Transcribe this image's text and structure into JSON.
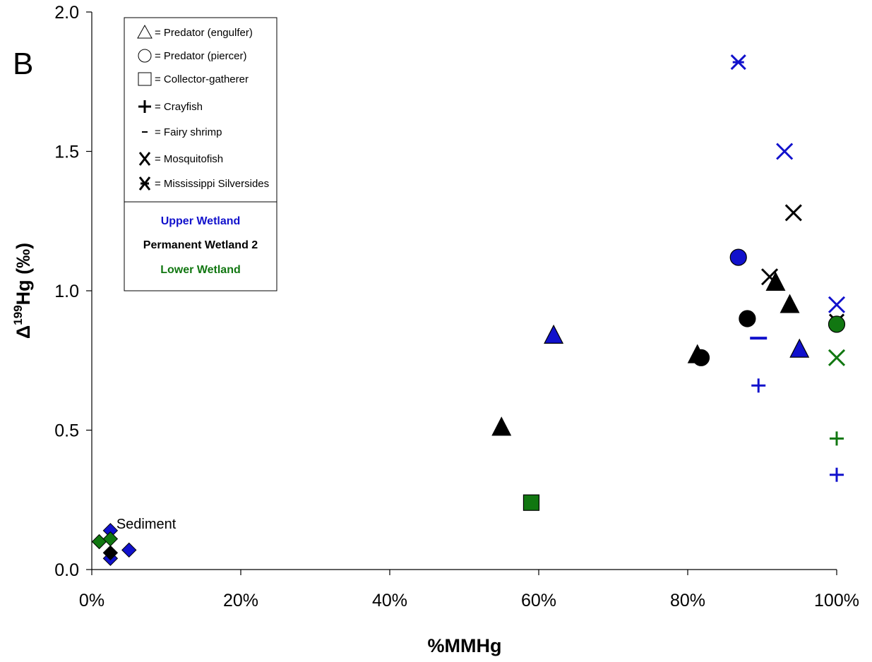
{
  "chart_data": {
    "type": "scatter",
    "panel_label": "B",
    "xlabel": "%MMHg",
    "ylabel_main": "Δ",
    "ylabel_sup": "199",
    "ylabel_rest": "Hg (‰)",
    "xlim": [
      0,
      100
    ],
    "ylim": [
      0,
      2.0
    ],
    "x_ticks": [
      0,
      20,
      40,
      60,
      80,
      100
    ],
    "x_tick_labels": [
      "0%",
      "20%",
      "40%",
      "60%",
      "80%",
      "100%"
    ],
    "y_ticks": [
      0,
      0.5,
      1.0,
      1.5,
      2.0
    ],
    "y_tick_labels": [
      "0.0",
      "0.5",
      "1.0",
      "1.5",
      "2.0"
    ],
    "grid": false,
    "legend_position": "top-left",
    "colors": {
      "upper": "#1111cc",
      "permanent": "#000000",
      "lower": "#117711"
    },
    "legend": {
      "shapes": [
        {
          "marker": "triangle",
          "label": "= Predator (engulfer)"
        },
        {
          "marker": "circle",
          "label": "= Predator (piercer)"
        },
        {
          "marker": "square",
          "label": "= Collector-gatherer"
        },
        {
          "marker": "plus",
          "label": "= Crayfish"
        },
        {
          "marker": "minus",
          "label": "= Fairy shrimp"
        },
        {
          "marker": "x",
          "label": "= Mosquitofish"
        },
        {
          "marker": "asterisk",
          "label": "= Mississippi Silversides"
        }
      ],
      "regions": [
        {
          "label": "Upper Wetland",
          "color": "#1111cc"
        },
        {
          "label": "Permanent Wetland 2",
          "color": "#000000"
        },
        {
          "label": "Lower Wetland",
          "color": "#117711"
        }
      ]
    },
    "annotations": [
      {
        "text": "Sediment",
        "x": 3.3,
        "y": 0.165
      }
    ],
    "points": [
      {
        "x": 2.5,
        "y": 0.14,
        "marker": "diamond",
        "region": "upper"
      },
      {
        "x": 2.5,
        "y": 0.04,
        "marker": "diamond",
        "region": "upper"
      },
      {
        "x": 5.0,
        "y": 0.07,
        "marker": "diamond",
        "region": "upper"
      },
      {
        "x": 2.5,
        "y": 0.06,
        "marker": "diamond",
        "region": "permanent"
      },
      {
        "x": 1.0,
        "y": 0.1,
        "marker": "diamond",
        "region": "lower"
      },
      {
        "x": 2.5,
        "y": 0.11,
        "marker": "diamond",
        "region": "lower"
      },
      {
        "x": 59.0,
        "y": 0.24,
        "marker": "square",
        "region": "lower"
      },
      {
        "x": 55.0,
        "y": 0.51,
        "marker": "triangle",
        "region": "permanent"
      },
      {
        "x": 62.0,
        "y": 0.84,
        "marker": "triangle",
        "region": "upper"
      },
      {
        "x": 81.3,
        "y": 0.77,
        "marker": "triangle",
        "region": "permanent"
      },
      {
        "x": 81.8,
        "y": 0.76,
        "marker": "circle",
        "region": "permanent"
      },
      {
        "x": 86.8,
        "y": 1.12,
        "marker": "circle",
        "region": "upper"
      },
      {
        "x": 88.0,
        "y": 0.9,
        "marker": "circle",
        "region": "permanent"
      },
      {
        "x": 89.5,
        "y": 0.83,
        "marker": "minus",
        "region": "upper"
      },
      {
        "x": 89.5,
        "y": 0.66,
        "marker": "plus",
        "region": "upper"
      },
      {
        "x": 86.8,
        "y": 1.82,
        "marker": "asterisk",
        "region": "upper"
      },
      {
        "x": 93.0,
        "y": 1.5,
        "marker": "x",
        "region": "upper"
      },
      {
        "x": 94.2,
        "y": 1.28,
        "marker": "x",
        "region": "permanent"
      },
      {
        "x": 91.0,
        "y": 1.05,
        "marker": "x",
        "region": "permanent"
      },
      {
        "x": 91.8,
        "y": 1.03,
        "marker": "triangle",
        "region": "permanent"
      },
      {
        "x": 93.7,
        "y": 0.95,
        "marker": "triangle",
        "region": "permanent"
      },
      {
        "x": 95.0,
        "y": 0.79,
        "marker": "triangle",
        "region": "upper"
      },
      {
        "x": 100,
        "y": 0.95,
        "marker": "x",
        "region": "upper"
      },
      {
        "x": 100,
        "y": 0.89,
        "marker": "asterisk",
        "region": "permanent"
      },
      {
        "x": 100,
        "y": 0.88,
        "marker": "circle",
        "region": "lower"
      },
      {
        "x": 100,
        "y": 0.76,
        "marker": "x",
        "region": "lower"
      },
      {
        "x": 100,
        "y": 0.47,
        "marker": "plus",
        "region": "lower"
      },
      {
        "x": 100,
        "y": 0.34,
        "marker": "plus",
        "region": "upper"
      }
    ]
  }
}
